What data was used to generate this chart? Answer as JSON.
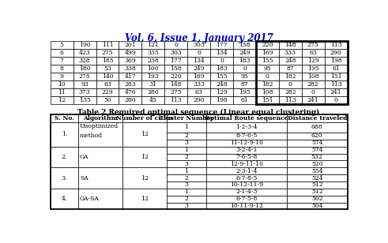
{
  "title": "Vol. 6, Issue 1, January 2017",
  "title_color": "#0000CC",
  "top_table": {
    "rows": [
      [
        5,
        190,
        111,
        201,
        121,
        0,
        303,
        177,
        158,
        220,
        148,
        275,
        113
      ],
      [
        6,
        423,
        275,
        499,
        335,
        303,
        0,
        134,
        249,
        169,
        333,
        63,
        290
      ],
      [
        7,
        328,
        185,
        369,
        238,
        177,
        134,
        0,
        183,
        155,
        248,
        129,
        198
      ],
      [
        8,
        180,
        53,
        338,
        100,
        158,
        249,
        183,
        0,
        95,
        87,
        195,
        61
      ],
      [
        9,
        275,
        140,
        417,
        193,
        220,
        169,
        155,
        95,
        0,
        182,
        108,
        151
      ],
      [
        10,
        93,
        63,
        283,
        31,
        148,
        333,
        248,
        87,
        182,
        0,
        282,
        113
      ],
      [
        11,
        373,
        229,
        476,
        286,
        275,
        63,
        129,
        195,
        108,
        282,
        0,
        241
      ],
      [
        12,
        135,
        50,
        280,
        45,
        113,
        290,
        198,
        61,
        151,
        113,
        241,
        0
      ]
    ]
  },
  "table2_title": "Table 2 Required optimal sequence (Linear equal clustering)",
  "table2_headers": [
    "S. No.",
    "Algorithm",
    "Number of cities",
    "Cluster Number",
    "Optimal Route sequence",
    "Distance traveled"
  ],
  "table2_groups": [
    {
      "sno": "1.",
      "algorithm": "Unoptimized\nmethod",
      "cities": "12",
      "clusters": [
        "1",
        "2",
        "3"
      ],
      "routes": [
        "1-2-3-4",
        "8-7-6-5",
        "11-12-9-10"
      ],
      "distances": [
        "688",
        "620",
        "574"
      ]
    },
    {
      "sno": "2.",
      "algorithm": "GA",
      "cities": "12",
      "clusters": [
        "1",
        "2",
        "3"
      ],
      "routes": [
        "3-2-4-1",
        "7-6-5-8",
        "12-9-11-10"
      ],
      "distances": [
        "574",
        "532",
        "520"
      ]
    },
    {
      "sno": "3.",
      "algorithm": "SA",
      "cities": "12",
      "clusters": [
        "1",
        "2",
        "3"
      ],
      "routes": [
        "2-3-1-4",
        "6-7-8-5",
        "10-12-11-9"
      ],
      "distances": [
        "554",
        "524",
        "512"
      ]
    },
    {
      "sno": "4.",
      "algorithm": "GA-SA",
      "cities": "12",
      "clusters": [
        "1",
        "2",
        "3"
      ],
      "routes": [
        "2-1-4-3",
        "6-7-5-8",
        "10-11-9-12"
      ],
      "distances": [
        "512",
        "502",
        "504"
      ]
    }
  ],
  "background_color": "#ffffff"
}
